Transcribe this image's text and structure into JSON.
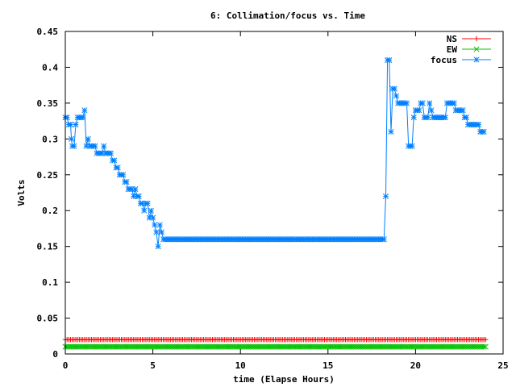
{
  "chart_data": {
    "type": "line",
    "title": "6: Collimation/focus vs. Time",
    "xlabel": "time (Elapse Hours)",
    "ylabel": "Volts",
    "xlim": [
      0,
      25
    ],
    "ylim": [
      0,
      0.45
    ],
    "xticks": [
      0,
      5,
      10,
      15,
      20,
      25
    ],
    "xtick_labels": [
      "0",
      "5",
      "10",
      "15",
      "20",
      "25"
    ],
    "yticks": [
      0,
      0.05,
      0.1,
      0.15,
      0.2,
      0.25,
      0.3,
      0.35,
      0.4,
      0.45
    ],
    "ytick_labels": [
      "0",
      "0.05",
      "0.1",
      "0.15",
      "0.2",
      "0.25",
      "0.3",
      "0.35",
      "0.4",
      "0.45"
    ],
    "grid": false,
    "legend_position": "top-right",
    "series": [
      {
        "name": "NS",
        "color": "#ff0000",
        "marker": "plus",
        "x_range": [
          0,
          24
        ],
        "x_step": 0.1,
        "constant_value": 0.02
      },
      {
        "name": "EW",
        "color": "#00c000",
        "marker": "cross",
        "x_range": [
          0,
          24
        ],
        "x_step": 0.1,
        "constant_value": 0.01
      },
      {
        "name": "focus",
        "color": "#0080ff",
        "marker": "star",
        "points": [
          [
            0.0,
            0.33
          ],
          [
            0.1,
            0.33
          ],
          [
            0.2,
            0.32
          ],
          [
            0.3,
            0.32
          ],
          [
            0.35,
            0.3
          ],
          [
            0.4,
            0.29
          ],
          [
            0.5,
            0.29
          ],
          [
            0.6,
            0.32
          ],
          [
            0.7,
            0.33
          ],
          [
            0.8,
            0.33
          ],
          [
            0.9,
            0.33
          ],
          [
            1.0,
            0.33
          ],
          [
            1.1,
            0.34
          ],
          [
            1.2,
            0.29
          ],
          [
            1.3,
            0.3
          ],
          [
            1.4,
            0.29
          ],
          [
            1.5,
            0.29
          ],
          [
            1.6,
            0.29
          ],
          [
            1.7,
            0.29
          ],
          [
            1.8,
            0.28
          ],
          [
            1.9,
            0.28
          ],
          [
            2.0,
            0.28
          ],
          [
            2.1,
            0.28
          ],
          [
            2.2,
            0.29
          ],
          [
            2.3,
            0.28
          ],
          [
            2.4,
            0.28
          ],
          [
            2.5,
            0.28
          ],
          [
            2.6,
            0.28
          ],
          [
            2.7,
            0.27
          ],
          [
            2.8,
            0.27
          ],
          [
            2.9,
            0.26
          ],
          [
            3.0,
            0.26
          ],
          [
            3.1,
            0.25
          ],
          [
            3.2,
            0.25
          ],
          [
            3.3,
            0.25
          ],
          [
            3.4,
            0.24
          ],
          [
            3.5,
            0.24
          ],
          [
            3.6,
            0.23
          ],
          [
            3.7,
            0.23
          ],
          [
            3.8,
            0.23
          ],
          [
            3.9,
            0.22
          ],
          [
            4.0,
            0.23
          ],
          [
            4.1,
            0.22
          ],
          [
            4.2,
            0.22
          ],
          [
            4.3,
            0.21
          ],
          [
            4.4,
            0.21
          ],
          [
            4.5,
            0.2
          ],
          [
            4.6,
            0.21
          ],
          [
            4.7,
            0.21
          ],
          [
            4.8,
            0.19
          ],
          [
            4.9,
            0.2
          ],
          [
            5.0,
            0.19
          ],
          [
            5.1,
            0.18
          ],
          [
            5.2,
            0.17
          ],
          [
            5.3,
            0.15
          ],
          [
            5.4,
            0.18
          ],
          [
            5.5,
            0.17
          ],
          [
            5.6,
            0.16
          ],
          [
            5.7,
            0.16
          ],
          [
            5.8,
            0.16
          ],
          [
            5.9,
            0.16
          ],
          [
            6.0,
            0.16
          ],
          [
            18.2,
            0.16
          ],
          [
            18.3,
            0.22
          ],
          [
            18.4,
            0.41
          ],
          [
            18.5,
            0.41
          ],
          [
            18.6,
            0.31
          ],
          [
            18.7,
            0.37
          ],
          [
            18.8,
            0.37
          ],
          [
            18.9,
            0.36
          ],
          [
            19.0,
            0.35
          ],
          [
            19.1,
            0.35
          ],
          [
            19.2,
            0.35
          ],
          [
            19.3,
            0.35
          ],
          [
            19.4,
            0.35
          ],
          [
            19.5,
            0.35
          ],
          [
            19.6,
            0.29
          ],
          [
            19.7,
            0.29
          ],
          [
            19.8,
            0.29
          ],
          [
            19.9,
            0.33
          ],
          [
            20.0,
            0.34
          ],
          [
            20.1,
            0.34
          ],
          [
            20.2,
            0.34
          ],
          [
            20.3,
            0.35
          ],
          [
            20.4,
            0.35
          ],
          [
            20.5,
            0.33
          ],
          [
            20.6,
            0.33
          ],
          [
            20.7,
            0.33
          ],
          [
            20.8,
            0.35
          ],
          [
            20.9,
            0.34
          ],
          [
            21.0,
            0.33
          ],
          [
            21.1,
            0.33
          ],
          [
            21.2,
            0.33
          ],
          [
            21.3,
            0.33
          ],
          [
            21.4,
            0.33
          ],
          [
            21.5,
            0.33
          ],
          [
            21.6,
            0.33
          ],
          [
            21.7,
            0.33
          ],
          [
            21.8,
            0.35
          ],
          [
            21.9,
            0.35
          ],
          [
            22.0,
            0.35
          ],
          [
            22.1,
            0.35
          ],
          [
            22.2,
            0.35
          ],
          [
            22.3,
            0.34
          ],
          [
            22.4,
            0.34
          ],
          [
            22.5,
            0.34
          ],
          [
            22.6,
            0.34
          ],
          [
            22.7,
            0.34
          ],
          [
            22.8,
            0.33
          ],
          [
            22.9,
            0.33
          ],
          [
            23.0,
            0.32
          ],
          [
            23.1,
            0.32
          ],
          [
            23.2,
            0.32
          ],
          [
            23.3,
            0.32
          ],
          [
            23.4,
            0.32
          ],
          [
            23.5,
            0.32
          ],
          [
            23.6,
            0.32
          ],
          [
            23.7,
            0.31
          ],
          [
            23.8,
            0.31
          ],
          [
            23.9,
            0.31
          ]
        ],
        "fill_step": 0.1
      }
    ]
  }
}
